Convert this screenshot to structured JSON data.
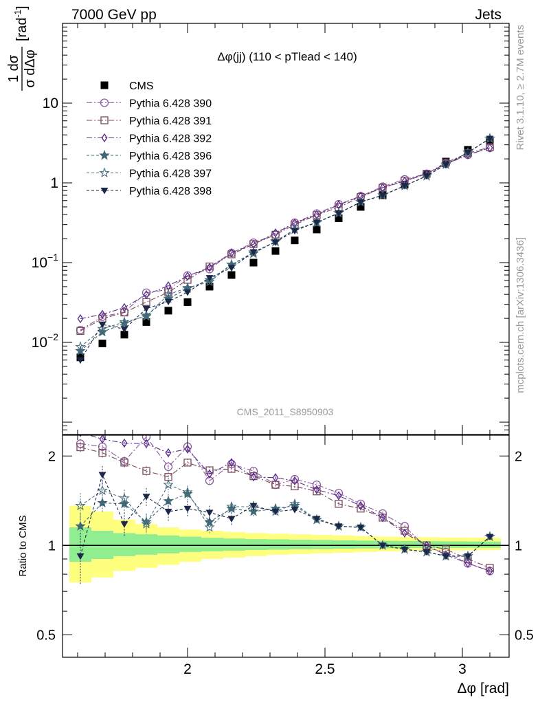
{
  "header": {
    "energy_label": "7000 GeV pp",
    "process_label": "Jets"
  },
  "side_labels": {
    "rivet": "Rivet 3.1.10, ≥ 2.7M events",
    "mcplots": "mcplots.cern.ch [arXiv:1306.3436]"
  },
  "chart_data": [
    {
      "type": "scatter",
      "title": "Δφ(jj) (110 < pTlead <  140)",
      "watermark": "CMS_2011_S8950903",
      "ylabel": "1/σ dσ/dΔφ [rad⁻¹]",
      "ylabel_parts": {
        "num": "1 dσ",
        "den": "σ dΔφ",
        "unit": "[rad",
        "unit_exp": "-1",
        "unit_close": "]"
      },
      "yscale": "log",
      "ylim": [
        0.0007,
        100
      ],
      "xlim": [
        1.545,
        3.17
      ],
      "y_tick_labels": [
        {
          "value": 0.01,
          "base": "10",
          "exp": "−2"
        },
        {
          "value": 0.1,
          "base": "10",
          "exp": "−1"
        },
        {
          "value": 1,
          "base": "1",
          "exp": ""
        },
        {
          "value": 10,
          "base": "10",
          "exp": ""
        }
      ],
      "legend_position": "top-left",
      "x": [
        1.61,
        1.69,
        1.77,
        1.85,
        1.93,
        2.0,
        2.08,
        2.16,
        2.24,
        2.32,
        2.39,
        2.47,
        2.55,
        2.63,
        2.71,
        2.79,
        2.87,
        2.94,
        3.02,
        3.1
      ],
      "series": [
        {
          "name": "CMS",
          "marker": "square-filled",
          "color": "#000000",
          "dash": "",
          "values": [
            0.0065,
            0.0097,
            0.0125,
            0.018,
            0.025,
            0.032,
            0.05,
            0.07,
            0.1,
            0.14,
            0.19,
            0.26,
            0.36,
            0.5,
            0.7,
            0.95,
            1.3,
            1.85,
            2.6,
            3.35
          ]
        },
        {
          "name": "Pythia 6.428 390",
          "marker": "circle-open",
          "color": "#8b5aa0",
          "dash": "8,3,2,3",
          "values": [
            0.0143,
            0.021,
            0.024,
            0.042,
            0.046,
            0.069,
            0.083,
            0.132,
            0.178,
            0.225,
            0.317,
            0.412,
            0.54,
            0.682,
            0.896,
            1.107,
            1.302,
            1.74,
            2.25,
            2.75
          ]
        },
        {
          "name": "Pythia 6.428 391",
          "marker": "square-open",
          "color": "#7a4b5e",
          "dash": "8,3,2,3",
          "values": [
            0.0139,
            0.0199,
            0.0237,
            0.0321,
            0.0425,
            0.0609,
            0.0895,
            0.127,
            0.171,
            0.224,
            0.3,
            0.395,
            0.495,
            0.665,
            0.87,
            1.065,
            1.3,
            1.8,
            2.35,
            2.8
          ]
        },
        {
          "name": "Pythia 6.428 392",
          "marker": "diamond-open",
          "color": "#5b2d8a",
          "dash": "8,3,2,3",
          "values": [
            0.0198,
            0.0225,
            0.0273,
            0.0396,
            0.0513,
            0.0676,
            0.087,
            0.133,
            0.17,
            0.236,
            0.314,
            0.4,
            0.53,
            0.68,
            0.87,
            1.05,
            1.3,
            1.72,
            2.25,
            2.75
          ]
        },
        {
          "name": "Pythia 6.428 396",
          "marker": "star-filled",
          "color": "#3e6675",
          "dash": "4,3",
          "values": [
            0.0078,
            0.0135,
            0.0173,
            0.0218,
            0.0355,
            0.0474,
            0.0605,
            0.0945,
            0.13,
            0.186,
            0.259,
            0.317,
            0.418,
            0.575,
            0.7,
            0.92,
            1.22,
            1.7,
            2.4,
            3.6
          ]
        },
        {
          "name": "Pythia 6.428 397",
          "marker": "star-open",
          "color": "#4a6f7d",
          "dash": "4,3",
          "values": [
            0.0088,
            0.0148,
            0.018,
            0.0212,
            0.04,
            0.0483,
            0.0575,
            0.0945,
            0.135,
            0.182,
            0.262,
            0.317,
            0.418,
            0.575,
            0.7,
            0.92,
            1.22,
            1.7,
            2.4,
            3.6
          ]
        },
        {
          "name": "Pythia 6.428 398",
          "marker": "triangle-down-filled",
          "color": "#1c2848",
          "dash": "4,3",
          "values": [
            0.006,
            0.0168,
            0.0147,
            0.0265,
            0.0325,
            0.0426,
            0.0645,
            0.0861,
            0.136,
            0.18,
            0.251,
            0.321,
            0.418,
            0.575,
            0.7,
            0.92,
            1.22,
            1.7,
            2.4,
            3.6
          ]
        }
      ]
    },
    {
      "type": "scatter",
      "ylabel": "Ratio to CMS",
      "yscale": "log",
      "ylim": [
        0.42,
        2.35
      ],
      "xlim": [
        1.545,
        3.17
      ],
      "xlabel": "Δφ [rad]",
      "x_ticks": [
        2,
        2.5,
        3
      ],
      "x_tick_labels": [
        "2",
        "2.5",
        "3"
      ],
      "y_ticks": [
        0.5,
        1,
        2
      ],
      "y_tick_labels": [
        "0.5",
        "1",
        "2"
      ],
      "reference_line": 1,
      "band_inner_color": "#90ee90",
      "band_outer_color": "#ffff7f",
      "bands": [
        {
          "x0": 1.57,
          "x1": 1.65,
          "lo1": 0.88,
          "hi1": 1.15,
          "lo2": 0.75,
          "hi2": 1.36
        },
        {
          "x0": 1.65,
          "x1": 1.73,
          "lo1": 0.9,
          "hi1": 1.12,
          "lo2": 0.78,
          "hi2": 1.3
        },
        {
          "x0": 1.73,
          "x1": 1.81,
          "lo1": 0.92,
          "hi1": 1.1,
          "lo2": 0.82,
          "hi2": 1.22
        },
        {
          "x0": 1.81,
          "x1": 1.89,
          "lo1": 0.93,
          "hi1": 1.09,
          "lo2": 0.84,
          "hi2": 1.18
        },
        {
          "x0": 1.89,
          "x1": 1.97,
          "lo1": 0.94,
          "hi1": 1.08,
          "lo2": 0.86,
          "hi2": 1.15
        },
        {
          "x0": 1.97,
          "x1": 2.05,
          "lo1": 0.95,
          "hi1": 1.07,
          "lo2": 0.88,
          "hi2": 1.13
        },
        {
          "x0": 2.05,
          "x1": 2.13,
          "lo1": 0.955,
          "hi1": 1.06,
          "lo2": 0.9,
          "hi2": 1.12
        },
        {
          "x0": 2.13,
          "x1": 2.21,
          "lo1": 0.96,
          "hi1": 1.055,
          "lo2": 0.91,
          "hi2": 1.11
        },
        {
          "x0": 2.21,
          "x1": 2.29,
          "lo1": 0.965,
          "hi1": 1.05,
          "lo2": 0.92,
          "hi2": 1.1
        },
        {
          "x0": 2.29,
          "x1": 2.37,
          "lo1": 0.967,
          "hi1": 1.048,
          "lo2": 0.93,
          "hi2": 1.095
        },
        {
          "x0": 2.37,
          "x1": 2.45,
          "lo1": 0.97,
          "hi1": 1.045,
          "lo2": 0.935,
          "hi2": 1.09
        },
        {
          "x0": 2.45,
          "x1": 2.53,
          "lo1": 0.972,
          "hi1": 1.043,
          "lo2": 0.94,
          "hi2": 1.085
        },
        {
          "x0": 2.53,
          "x1": 2.61,
          "lo1": 0.975,
          "hi1": 1.04,
          "lo2": 0.945,
          "hi2": 1.08
        },
        {
          "x0": 2.61,
          "x1": 2.69,
          "lo1": 0.977,
          "hi1": 1.038,
          "lo2": 0.95,
          "hi2": 1.075
        },
        {
          "x0": 2.69,
          "x1": 2.77,
          "lo1": 0.978,
          "hi1": 1.036,
          "lo2": 0.955,
          "hi2": 1.07
        },
        {
          "x0": 2.77,
          "x1": 2.85,
          "lo1": 0.98,
          "hi1": 1.034,
          "lo2": 0.958,
          "hi2": 1.068
        },
        {
          "x0": 2.85,
          "x1": 2.93,
          "lo1": 0.98,
          "hi1": 1.033,
          "lo2": 0.96,
          "hi2": 1.065
        },
        {
          "x0": 2.93,
          "x1": 3.01,
          "lo1": 0.981,
          "hi1": 1.032,
          "lo2": 0.962,
          "hi2": 1.063
        },
        {
          "x0": 3.01,
          "x1": 3.09,
          "lo1": 0.982,
          "hi1": 1.031,
          "lo2": 0.963,
          "hi2": 1.062
        },
        {
          "x0": 3.09,
          "x1": 3.14,
          "lo1": 0.982,
          "hi1": 1.03,
          "lo2": 0.964,
          "hi2": 1.06
        }
      ],
      "x": [
        1.61,
        1.69,
        1.77,
        1.85,
        1.93,
        2.0,
        2.08,
        2.16,
        2.24,
        2.32,
        2.39,
        2.47,
        2.55,
        2.63,
        2.71,
        2.79,
        2.87,
        2.94,
        3.02,
        3.1
      ],
      "series": [
        {
          "name": "Pythia 6.428 390",
          "marker": "circle-open",
          "color": "#8b5aa0",
          "dash": "8,3,2,3",
          "values": [
            2.2,
            2.15,
            1.92,
            2.32,
            1.84,
            2.15,
            1.65,
            1.88,
            1.78,
            1.6,
            1.67,
            1.6,
            1.5,
            1.38,
            1.28,
            1.16,
            0.98,
            0.95,
            0.87,
            0.82
          ],
          "err": [
            0.08,
            0.08,
            0.07,
            0.08,
            0.07,
            0.07,
            0.05,
            0.05,
            0.04,
            0.03,
            0.03,
            0.03,
            0.02,
            0.02,
            0.02,
            0.01,
            0.01,
            0.01,
            0.01,
            0.01
          ]
        },
        {
          "name": "Pythia 6.428 391",
          "marker": "square-open",
          "color": "#7a4b5e",
          "dash": "8,3,2,3",
          "values": [
            2.14,
            2.05,
            1.9,
            1.78,
            1.7,
            1.9,
            1.79,
            1.81,
            1.71,
            1.6,
            1.58,
            1.52,
            1.38,
            1.33,
            1.24,
            1.12,
            1.0,
            0.97,
            0.9,
            0.84
          ],
          "err": [
            0.08,
            0.08,
            0.07,
            0.07,
            0.06,
            0.06,
            0.05,
            0.05,
            0.04,
            0.03,
            0.03,
            0.03,
            0.02,
            0.02,
            0.02,
            0.01,
            0.01,
            0.01,
            0.01,
            0.01
          ]
        },
        {
          "name": "Pythia 6.428 392",
          "marker": "diamond-open",
          "color": "#5b2d8a",
          "dash": "8,3,2,3",
          "values": [
            2.4,
            2.28,
            2.21,
            2.2,
            2.05,
            2.11,
            1.74,
            1.9,
            1.7,
            1.69,
            1.65,
            1.54,
            1.47,
            1.36,
            1.24,
            1.1,
            1.0,
            0.93,
            0.87,
            0.82
          ],
          "err": [
            0.08,
            0.08,
            0.07,
            0.08,
            0.07,
            0.07,
            0.05,
            0.05,
            0.04,
            0.03,
            0.03,
            0.03,
            0.02,
            0.02,
            0.02,
            0.01,
            0.01,
            0.01,
            0.01,
            0.01
          ]
        },
        {
          "name": "Pythia 6.428 396",
          "marker": "star-filled",
          "color": "#3e6675",
          "dash": "4,3",
          "values": [
            1.16,
            1.39,
            1.38,
            1.2,
            1.41,
            1.49,
            1.2,
            1.33,
            1.3,
            1.33,
            1.36,
            1.22,
            1.16,
            1.15,
            1.0,
            0.97,
            0.95,
            0.92,
            0.92,
            1.07
          ],
          "err": [
            0.12,
            0.1,
            0.09,
            0.08,
            0.08,
            0.07,
            0.06,
            0.05,
            0.05,
            0.04,
            0.04,
            0.03,
            0.03,
            0.02,
            0.02,
            0.02,
            0.01,
            0.01,
            0.01,
            0.01
          ]
        },
        {
          "name": "Pythia 6.428 397",
          "marker": "star-open",
          "color": "#4a6f7d",
          "dash": "4,3",
          "values": [
            1.36,
            1.53,
            1.44,
            1.18,
            1.6,
            1.51,
            1.15,
            1.35,
            1.35,
            1.3,
            1.38,
            1.22,
            1.16,
            1.15,
            1.0,
            0.97,
            0.95,
            0.92,
            0.92,
            1.07
          ],
          "err": [
            0.14,
            0.12,
            0.1,
            0.09,
            0.09,
            0.08,
            0.06,
            0.05,
            0.05,
            0.04,
            0.04,
            0.03,
            0.03,
            0.02,
            0.02,
            0.02,
            0.01,
            0.01,
            0.01,
            0.01
          ]
        },
        {
          "name": "Pythia 6.428 398",
          "marker": "triangle-down-filled",
          "color": "#1c2848",
          "dash": "4,3",
          "values": [
            0.92,
            1.73,
            1.18,
            1.46,
            1.3,
            1.33,
            1.29,
            1.23,
            1.36,
            1.3,
            1.32,
            1.23,
            1.16,
            1.15,
            1.0,
            0.97,
            0.95,
            0.92,
            0.92,
            1.07
          ],
          "err": [
            0.18,
            0.12,
            0.11,
            0.1,
            0.09,
            0.08,
            0.07,
            0.06,
            0.05,
            0.04,
            0.04,
            0.03,
            0.03,
            0.02,
            0.02,
            0.02,
            0.01,
            0.01,
            0.01,
            0.01
          ]
        }
      ]
    }
  ]
}
